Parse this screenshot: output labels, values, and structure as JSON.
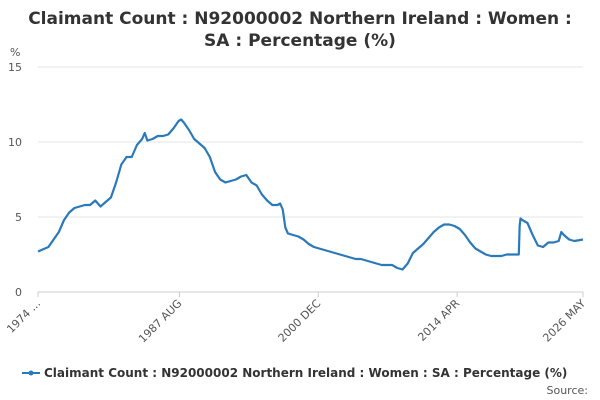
{
  "chart_data": {
    "type": "line",
    "title": [
      "Claimant Count : N92000002 Northern Ireland : Women :",
      "SA : Percentage (%)"
    ],
    "y_label": "%",
    "source": "Source:",
    "grid": true,
    "xlim": [
      "1974 JAN",
      "2026 MAY"
    ],
    "xticks": [
      {
        "value": "1974 JAN",
        "label": "1974 ..."
      },
      "1987 AUG",
      "2000 DEC",
      "2014 APR",
      "2026 MAY"
    ],
    "ylim": [
      0,
      15
    ],
    "yticks": [
      0,
      5,
      10,
      15
    ],
    "x": [
      "1974 JAN",
      "1975 JAN",
      "1975 JUL",
      "1976 JAN",
      "1976 JUL",
      "1977 JAN",
      "1977 JUL",
      "1978 JAN",
      "1978 JUL",
      "1979 JAN",
      "1979 JUL",
      "1980 JAN",
      "1980 JUL",
      "1981 JAN",
      "1981 JUL",
      "1982 JAN",
      "1982 JUL",
      "1983 JAN",
      "1983 JUL",
      "1984 JAN",
      "1984 APR",
      "1984 JUL",
      "1985 JAN",
      "1985 JUL",
      "1986 JAN",
      "1986 JUL",
      "1987 JAN",
      "1987 JUL",
      "1987 OCT",
      "1988 JAN",
      "1988 JUL",
      "1989 JAN",
      "1989 JUL",
      "1990 JAN",
      "1990 JUL",
      "1991 JAN",
      "1991 JUL",
      "1992 JAN",
      "1992 JUL",
      "1993 JAN",
      "1993 JUL",
      "1994 JAN",
      "1994 JUL",
      "1995 JAN",
      "1995 JUL",
      "1996 JAN",
      "1996 JUL",
      "1997 JAN",
      "1997 APR",
      "1997 JUL",
      "1997 OCT",
      "1998 JAN",
      "1998 JUL",
      "1999 JAN",
      "1999 JUL",
      "2000 JAN",
      "2000 JUL",
      "2001 JAN",
      "2001 JUL",
      "2002 JAN",
      "2002 JUL",
      "2003 JAN",
      "2003 JUL",
      "2004 JAN",
      "2004 JUL",
      "2005 JAN",
      "2005 JUL",
      "2006 JAN",
      "2006 JUL",
      "2007 JAN",
      "2007 JUL",
      "2008 JAN",
      "2008 JUL",
      "2009 JAN",
      "2009 JUL",
      "2010 JAN",
      "2010 JUL",
      "2011 JAN",
      "2011 JUL",
      "2012 JAN",
      "2012 JUL",
      "2013 JAN",
      "2013 JUL",
      "2014 JAN",
      "2014 JUL",
      "2015 JAN",
      "2015 JUL",
      "2016 JAN",
      "2016 JUL",
      "2017 JAN",
      "2017 JUL",
      "2018 JAN",
      "2018 JUL",
      "2019 JAN",
      "2019 JUL",
      "2020 JAN",
      "2020 MAR",
      "2020 APR",
      "2020 MAY",
      "2020 JUL",
      "2021 JAN",
      "2021 JUL",
      "2022 JAN",
      "2022 JUL",
      "2023 JAN",
      "2023 JUL",
      "2024 JAN",
      "2024 APR",
      "2024 JUL",
      "2025 JAN",
      "2025 JUL",
      "2026 MAY"
    ],
    "series": [
      {
        "name": "Claimant Count : N92000002 Northern Ireland : Women : SA : Percentage (%)",
        "color": "#2a7ab9",
        "values": [
          2.7,
          3.0,
          3.5,
          4.0,
          4.8,
          5.3,
          5.6,
          5.7,
          5.8,
          5.8,
          6.1,
          5.7,
          6.0,
          6.3,
          7.3,
          8.5,
          9.0,
          9.0,
          9.8,
          10.2,
          10.6,
          10.1,
          10.2,
          10.4,
          10.4,
          10.5,
          10.9,
          11.4,
          11.5,
          11.3,
          10.8,
          10.2,
          9.9,
          9.6,
          9.0,
          8.0,
          7.5,
          7.3,
          7.4,
          7.5,
          7.7,
          7.8,
          7.3,
          7.1,
          6.5,
          6.1,
          5.8,
          5.8,
          5.9,
          5.5,
          4.3,
          3.9,
          3.8,
          3.7,
          3.5,
          3.2,
          3.0,
          2.9,
          2.8,
          2.7,
          2.6,
          2.5,
          2.4,
          2.3,
          2.2,
          2.2,
          2.1,
          2.0,
          1.9,
          1.8,
          1.8,
          1.8,
          1.6,
          1.5,
          1.9,
          2.6,
          2.9,
          3.2,
          3.6,
          4.0,
          4.3,
          4.5,
          4.5,
          4.4,
          4.2,
          3.8,
          3.3,
          2.9,
          2.7,
          2.5,
          2.4,
          2.4,
          2.4,
          2.5,
          2.5,
          2.5,
          2.5,
          4.4,
          4.9,
          4.8,
          4.6,
          3.8,
          3.1,
          3.0,
          3.3,
          3.3,
          3.4,
          4.0,
          3.8,
          3.5,
          3.4,
          3.5
        ]
      }
    ]
  }
}
